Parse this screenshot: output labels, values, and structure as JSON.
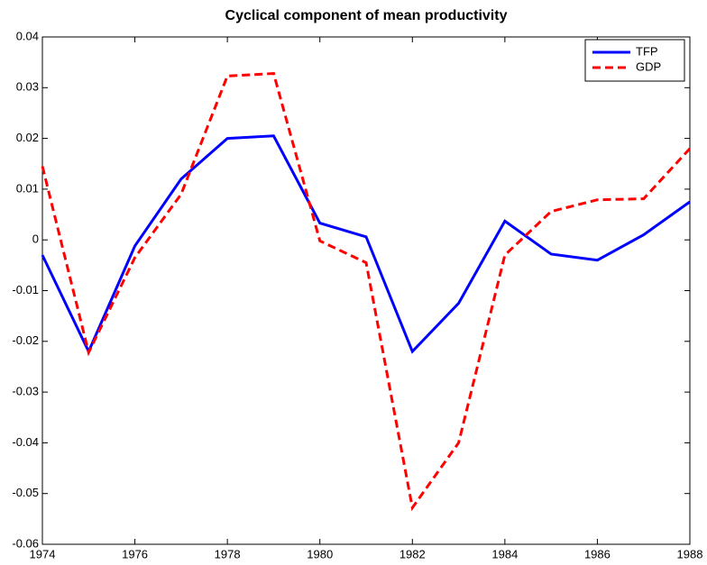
{
  "chart_data": {
    "type": "line",
    "title": "Cyclical component of mean productivity",
    "x": [
      1974,
      1975,
      1976,
      1977,
      1978,
      1979,
      1980,
      1981,
      1982,
      1983,
      1984,
      1985,
      1986,
      1987,
      1988
    ],
    "series": [
      {
        "name": "TFP",
        "color": "#0000ff",
        "linestyle": "solid",
        "values": [
          -0.003,
          -0.022,
          -0.0012,
          0.012,
          0.02,
          0.0205,
          0.0033,
          0.0006,
          -0.022,
          -0.0125,
          0.0037,
          -0.0028,
          -0.004,
          0.001,
          0.0075
        ]
      },
      {
        "name": "GDP",
        "color": "#ff0000",
        "linestyle": "dashed",
        "values": [
          0.0145,
          -0.0222,
          -0.0035,
          0.009,
          0.0323,
          0.0328,
          -0.0002,
          -0.0045,
          -0.0528,
          -0.04,
          -0.003,
          0.0056,
          0.0079,
          0.0081,
          0.018
        ]
      }
    ],
    "xlim": [
      1974,
      1988
    ],
    "xticks": [
      1974,
      1976,
      1978,
      1980,
      1982,
      1984,
      1986,
      1988
    ],
    "ylim": [
      -0.06,
      0.04
    ],
    "yticks": [
      -0.06,
      -0.05,
      -0.04,
      -0.03,
      -0.02,
      -0.01,
      0,
      0.01,
      0.02,
      0.03,
      0.04
    ],
    "grid": false,
    "legend": "upper right"
  }
}
